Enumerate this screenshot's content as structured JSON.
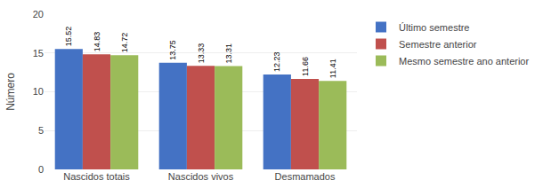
{
  "chart_data": {
    "type": "bar",
    "ylabel": "Número",
    "categories": [
      "Nascidos totais",
      "Nascidos vivos",
      "Desmamados"
    ],
    "series": [
      {
        "name": "Último semestre",
        "color": "#4472C4",
        "values": [
          15.52,
          13.75,
          12.23
        ]
      },
      {
        "name": "Semestre anterior",
        "color": "#C0504D",
        "values": [
          14.83,
          13.33,
          11.66
        ]
      },
      {
        "name": "Mesmo semestre ano anterior",
        "color": "#9BBB59",
        "values": [
          14.72,
          13.31,
          11.41
        ]
      }
    ],
    "ylim": [
      0,
      20
    ],
    "yticks": [
      0,
      5,
      10,
      15,
      20
    ],
    "grid": true,
    "legend": "right",
    "data_labels": true
  }
}
